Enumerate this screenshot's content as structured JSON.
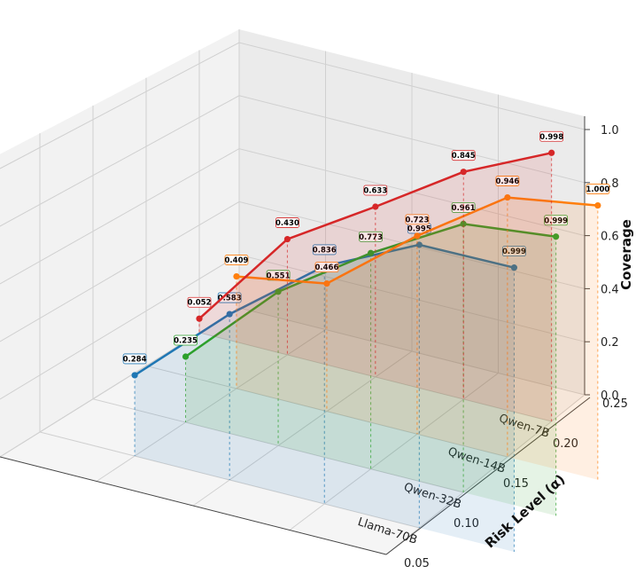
{
  "chart_data": {
    "type": "line",
    "projection": "3d",
    "x_axis": {
      "label": "",
      "categories": [
        "Llama-70B",
        "Qwen-32B",
        "Qwen-14B",
        "Qwen-7B"
      ]
    },
    "y_axis": {
      "label": "Risk Level (α)",
      "ticks": [
        "0.05",
        "0.10",
        "0.15",
        "0.20",
        "0.25"
      ],
      "range": [
        0.05,
        0.25
      ]
    },
    "z_axis": {
      "label": "Coverage",
      "ticks": [
        "0.0",
        "0.2",
        "0.4",
        "0.6",
        "0.8",
        "1.0"
      ],
      "range": [
        0.0,
        1.0
      ]
    },
    "grid": true,
    "series": [
      {
        "category": "Llama-70B",
        "color": "#1f77b4",
        "alpha": [
          0.1,
          0.15,
          0.2,
          0.25,
          0.3
        ],
        "coverage": [
          0.284,
          0.583,
          0.836,
          0.995,
          0.999
        ],
        "labels": [
          "0.284",
          "0.583",
          "0.836",
          "0.995",
          "0.999"
        ]
      },
      {
        "category": "Qwen-32B",
        "color": "#2ca02c",
        "alpha": [
          0.1,
          0.15,
          0.2,
          0.25,
          0.3
        ],
        "coverage": [
          0.235,
          0.551,
          0.773,
          0.961,
          0.999
        ],
        "labels": [
          "0.235",
          "0.551",
          "0.773",
          "0.961",
          "0.999"
        ]
      },
      {
        "category": "Qwen-14B",
        "color": "#ff7f0e",
        "alpha": [
          0.1,
          0.15,
          0.2,
          0.25,
          0.3
        ],
        "coverage": [
          0.409,
          0.466,
          0.723,
          0.946,
          1.0
        ],
        "labels": [
          "0.409",
          "0.466",
          "0.723",
          "0.946",
          "1.000"
        ]
      },
      {
        "category": "Qwen-7B",
        "color": "#d62728",
        "alpha": [
          0.05,
          0.1,
          0.15,
          0.2,
          0.25
        ],
        "coverage": [
          0.052,
          0.43,
          0.633,
          0.845,
          0.998
        ],
        "labels": [
          "0.052",
          "0.430",
          "0.633",
          "0.845",
          "0.998"
        ]
      }
    ]
  }
}
